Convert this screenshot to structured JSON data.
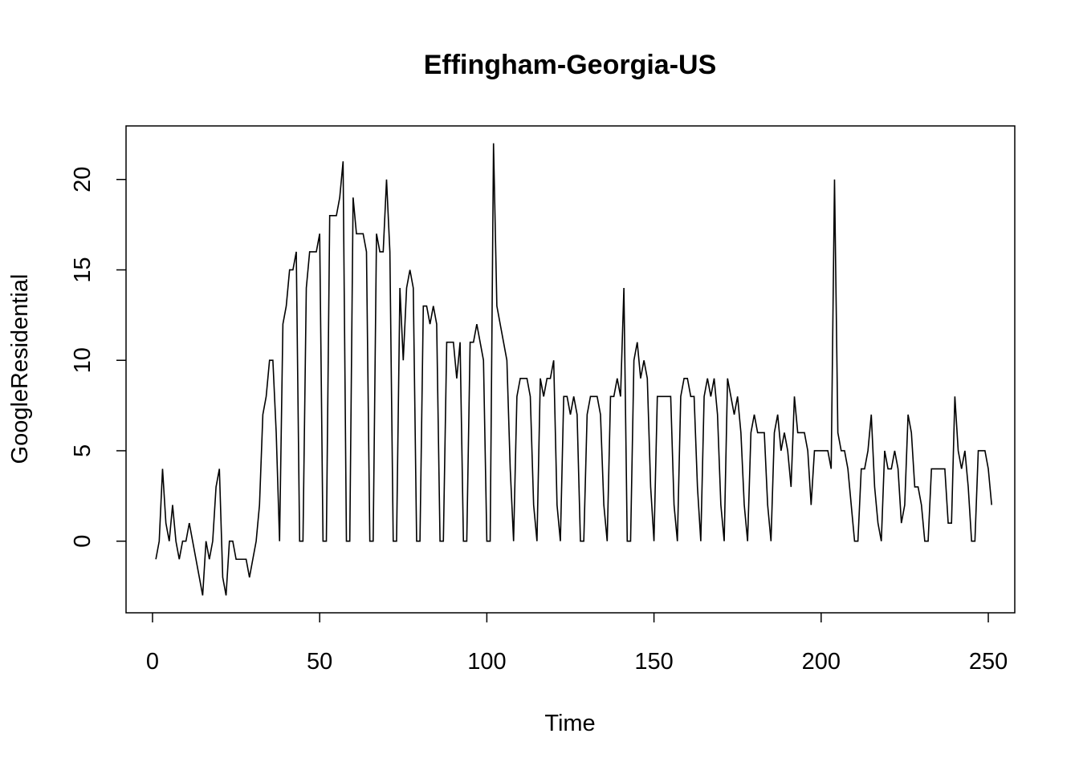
{
  "chart_data": {
    "type": "line",
    "title": "Effingham-Georgia-US",
    "xlabel": "Time",
    "ylabel": "GoogleResidential",
    "xlim": [
      -7.92,
      257.92
    ],
    "ylim": [
      -3.96,
      22.96
    ],
    "x_ticks": [
      0,
      50,
      100,
      150,
      200,
      250
    ],
    "y_ticks": [
      0,
      5,
      10,
      15,
      20
    ],
    "grid": false,
    "x_start": 1,
    "series": [
      {
        "values": [
          -1,
          0,
          4,
          1,
          0,
          2,
          0,
          -1,
          0,
          0,
          1,
          0,
          -1,
          -2,
          -3,
          0,
          -1,
          0,
          3,
          4,
          -2,
          -3,
          0,
          0,
          -1,
          -1,
          -1,
          -1,
          -2,
          -1,
          0,
          2,
          7,
          8,
          10,
          10,
          6,
          0,
          12,
          13,
          15,
          15,
          16,
          0,
          0,
          14,
          16,
          16,
          16,
          17,
          0,
          0,
          18,
          18,
          18,
          19,
          21,
          0,
          0,
          19,
          17,
          17,
          17,
          16,
          0,
          0,
          17,
          16,
          16,
          20,
          16,
          0,
          0,
          14,
          10,
          14,
          15,
          14,
          0,
          0,
          13,
          13,
          12,
          13,
          12,
          0,
          0,
          11,
          11,
          11,
          9,
          11,
          0,
          0,
          11,
          11,
          12,
          11,
          10,
          0,
          0,
          22,
          13,
          12,
          11,
          10,
          4,
          0,
          8,
          9,
          9,
          9,
          8,
          2,
          0,
          9,
          8,
          9,
          9,
          10,
          2,
          0,
          8,
          8,
          7,
          8,
          7,
          0,
          0,
          7,
          8,
          8,
          8,
          7,
          2,
          0,
          8,
          8,
          9,
          8,
          14,
          0,
          0,
          10,
          11,
          9,
          10,
          9,
          3,
          0,
          8,
          8,
          8,
          8,
          8,
          2,
          0,
          8,
          9,
          9,
          8,
          8,
          3,
          0,
          8,
          9,
          8,
          9,
          7,
          2,
          0,
          9,
          8,
          7,
          8,
          6,
          2,
          0,
          6,
          7,
          6,
          6,
          6,
          2,
          0,
          6,
          7,
          5,
          6,
          5,
          3,
          8,
          6,
          6,
          6,
          5,
          2,
          5,
          5,
          5,
          5,
          5,
          4,
          20,
          6,
          5,
          5,
          4,
          2,
          0,
          0,
          4,
          4,
          5,
          7,
          3,
          1,
          0,
          5,
          4,
          4,
          5,
          4,
          1,
          2,
          7,
          6,
          3,
          3,
          2,
          0,
          0,
          4,
          4,
          4,
          4,
          4,
          1,
          1,
          8,
          5,
          4,
          5,
          3,
          0,
          0,
          5,
          5,
          5,
          4,
          2
        ]
      }
    ]
  }
}
